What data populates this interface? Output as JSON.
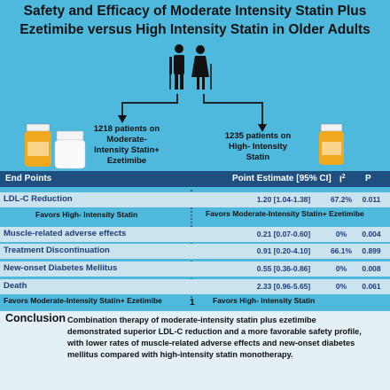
{
  "title_line1": "Safety and Efficacy of Moderate Intensity Statin Plus",
  "title_line2": "Ezetimibe versus High Intensity Statin in Older Adults",
  "group_left": {
    "line1": "1218 patients on",
    "line2": "Moderate-",
    "line3": "Intensity Statin+",
    "line4": "Ezetimibe"
  },
  "group_right": {
    "line1": "1235 patients on",
    "line2": "High- Intensity",
    "line3": "Statin"
  },
  "table_header": {
    "endpoints": "End Points",
    "estimate": "Point Estimate [95% CI]",
    "i2": "I",
    "i2_sup": "2",
    "p": "P"
  },
  "favors_top_left": "Favors High- Intensity Statin",
  "favors_top_right": "Favors Moderate-Intensity Statin+ Ezetimibe",
  "favors_bottom_left": "Favors Moderate-Intensity Statin+ Ezetimibe",
  "favors_bottom_right": "Favors High- Intensity Statin",
  "axis_one": "1",
  "rows": [
    {
      "label": "LDL-C Reduction",
      "estimate": "1.20 [1.04-1.38]",
      "i2": "67.2%",
      "p": "0.011",
      "point": 1.2,
      "low": 1.04,
      "high": 1.38
    },
    {
      "label": "Muscle-related adverse effects",
      "estimate": "0.21 [0.07-0.60]",
      "i2": "0%",
      "p": "0.004",
      "point": 0.21,
      "low": 0.07,
      "high": 0.6
    },
    {
      "label": "Treatment Discontinuation",
      "estimate": "0.91 [0.20-4.10]",
      "i2": "66.1%",
      "p": "0.899",
      "point": 0.91,
      "low": 0.2,
      "high": 4.1
    },
    {
      "label": "New-onset Diabetes Mellitus",
      "estimate": "0.55 [0.36-0.86]",
      "i2": "0%",
      "p": "0.008",
      "point": 0.55,
      "low": 0.36,
      "high": 0.86
    },
    {
      "label": "Death",
      "estimate": "2.33 [0.96-5.65]",
      "i2": "0%",
      "p": "0.061",
      "point": 2.33,
      "low": 0.96,
      "high": 5.65
    }
  ],
  "conclusion": {
    "heading": "Conclusion",
    "line1": "Combination therapy of moderate-intensity statin plus ezetimibe",
    "line2": "demonstrated superior LDL-C reduction and a more favorable safety profile,",
    "line3": "with lower rates of muscle-related adverse effects and new-onset diabetes",
    "line4": "mellitus compared with high-intensity statin monotherapy."
  },
  "icons": [
    "elderly-couple-icon",
    "pill-bottle-icon",
    "arrow-icon",
    "lightbulb-icon"
  ],
  "colors": {
    "background": "#4fb8dd",
    "header": "#1f4f7e",
    "row": "#cbe3ee",
    "text_blue": "#1b3d78"
  }
}
